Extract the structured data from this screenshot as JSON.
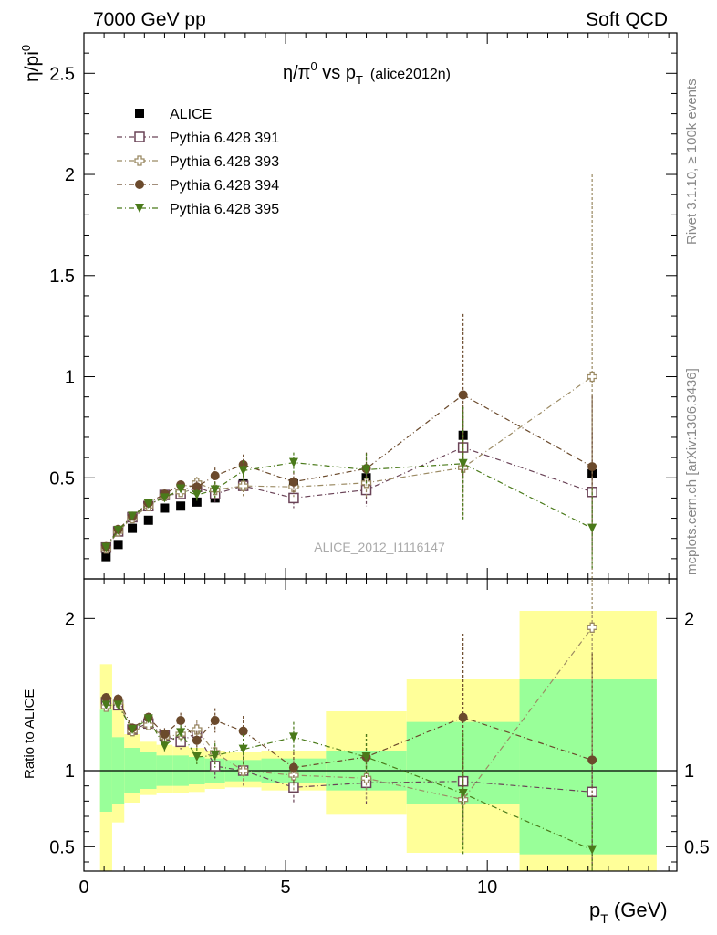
{
  "header": {
    "left_title": "7000 GeV pp",
    "right_title": "Soft QCD"
  },
  "side_labels": {
    "rivet": "Rivet 3.1.10, ≥ 100k events",
    "mcplots": "mcplots.cern.ch [arXiv:1306.3436]"
  },
  "chart_data": [
    {
      "type": "scatter",
      "panel": "main",
      "title_main": "η/π",
      "title_sup": "0",
      "title_vs": " vs p",
      "title_sub": "T",
      "title_tag": "(alice2012n)",
      "ylabel_main": "η/pi",
      "ylabel_sup": "0",
      "watermark": "ALICE_2012_I1116147",
      "ylim": [
        0,
        2.7
      ],
      "xlim": [
        0,
        14.7
      ],
      "x_ticks": [
        0,
        5,
        10
      ],
      "y_ticks": [
        0.5,
        1,
        1.5,
        2,
        2.5
      ],
      "y_tick_labels": [
        "0.5",
        "1",
        "1.5",
        "2",
        "2.5"
      ],
      "legend_position": "top-left",
      "series": [
        {
          "name": "ALICE",
          "color": "#000000",
          "marker": "square-filled",
          "line": false,
          "x": [
            0.55,
            0.85,
            1.2,
            1.6,
            2.0,
            2.4,
            2.8,
            3.25,
            3.95,
            5.2,
            7.0,
            9.4,
            12.6
          ],
          "y": [
            0.11,
            0.17,
            0.25,
            0.29,
            0.35,
            0.36,
            0.38,
            0.4,
            0.47,
            0.47,
            0.5,
            0.71,
            0.52
          ]
        },
        {
          "name": "Pythia 6.428 391",
          "color": "#6a4357",
          "marker": "square-open",
          "x": [
            0.55,
            0.85,
            1.2,
            1.6,
            2.0,
            2.4,
            2.8,
            3.25,
            3.95,
            5.2,
            7.0,
            9.4,
            12.6
          ],
          "y": [
            0.155,
            0.235,
            0.305,
            0.36,
            0.415,
            0.42,
            0.455,
            0.42,
            0.46,
            0.4,
            0.44,
            0.65,
            0.43
          ],
          "err": [
            0.01,
            0.01,
            0.01,
            0.015,
            0.02,
            0.02,
            0.03,
            0.04,
            0.05,
            0.05,
            0.08,
            0.2,
            0.3
          ]
        },
        {
          "name": "Pythia 6.428 393",
          "color": "#9b8a63",
          "marker": "cross-open",
          "x": [
            0.55,
            0.85,
            1.2,
            1.6,
            2.0,
            2.4,
            2.8,
            3.25,
            3.95,
            5.2,
            7.0,
            9.4,
            12.6
          ],
          "y": [
            0.15,
            0.235,
            0.3,
            0.36,
            0.41,
            0.43,
            0.475,
            0.44,
            0.46,
            0.455,
            0.475,
            0.55,
            1.0
          ],
          "err": [
            0.01,
            0.01,
            0.01,
            0.015,
            0.02,
            0.02,
            0.03,
            0.04,
            0.05,
            0.05,
            0.08,
            0.25,
            1.0
          ]
        },
        {
          "name": "Pythia 6.428 394",
          "color": "#6b4a2c",
          "marker": "circle-filled",
          "x": [
            0.55,
            0.85,
            1.2,
            1.6,
            2.0,
            2.4,
            2.8,
            3.25,
            3.95,
            5.2,
            7.0,
            9.4,
            12.6
          ],
          "y": [
            0.16,
            0.245,
            0.31,
            0.375,
            0.42,
            0.465,
            0.455,
            0.51,
            0.565,
            0.48,
            0.545,
            0.91,
            0.555
          ],
          "err": [
            0.01,
            0.01,
            0.01,
            0.015,
            0.02,
            0.02,
            0.03,
            0.04,
            0.05,
            0.05,
            0.08,
            0.4,
            0.35
          ]
        },
        {
          "name": "Pythia 6.428 395",
          "color": "#4a7a1a",
          "marker": "triangle-down-filled",
          "x": [
            0.55,
            0.85,
            1.2,
            1.6,
            2.0,
            2.4,
            2.8,
            3.25,
            3.95,
            5.2,
            7.0,
            9.4,
            12.6
          ],
          "y": [
            0.155,
            0.24,
            0.31,
            0.37,
            0.4,
            0.445,
            0.415,
            0.44,
            0.535,
            0.575,
            0.54,
            0.57,
            0.25
          ],
          "err": [
            0.01,
            0.01,
            0.01,
            0.015,
            0.02,
            0.02,
            0.03,
            0.04,
            0.05,
            0.05,
            0.08,
            0.28,
            0.2
          ]
        }
      ]
    },
    {
      "type": "scatter",
      "panel": "ratio",
      "ylabel": "Ratio to ALICE",
      "xlabel_main": "p",
      "xlabel_sub": "T",
      "xlabel_unit": " (GeV)",
      "ylim": [
        0.34,
        2.26
      ],
      "xlim": [
        0,
        14.7
      ],
      "x_ticks": [
        0,
        5,
        10
      ],
      "x_tick_labels": [
        "0",
        "5",
        "10"
      ],
      "y_ticks": [
        0.5,
        1,
        2
      ],
      "y_tick_labels": [
        "0.5",
        "1",
        "2"
      ],
      "reference_line": 1,
      "bands": [
        {
          "x0": 0.4,
          "x1": 0.7,
          "stat_lo": 0.73,
          "stat_hi": 1.4,
          "tot_lo": 0.0,
          "tot_hi": 1.7
        },
        {
          "x0": 0.7,
          "x1": 1.0,
          "stat_lo": 0.78,
          "stat_hi": 1.22,
          "tot_lo": 0.66,
          "tot_hi": 1.44
        },
        {
          "x0": 1.0,
          "x1": 1.4,
          "stat_lo": 0.85,
          "stat_hi": 1.15,
          "tot_lo": 0.79,
          "tot_hi": 1.24
        },
        {
          "x0": 1.4,
          "x1": 1.8,
          "stat_lo": 0.88,
          "stat_hi": 1.12,
          "tot_lo": 0.84,
          "tot_hi": 1.19
        },
        {
          "x0": 1.8,
          "x1": 2.2,
          "stat_lo": 0.9,
          "stat_hi": 1.1,
          "tot_lo": 0.85,
          "tot_hi": 1.17
        },
        {
          "x0": 2.2,
          "x1": 2.6,
          "stat_lo": 0.9,
          "stat_hi": 1.1,
          "tot_lo": 0.85,
          "tot_hi": 1.16
        },
        {
          "x0": 2.6,
          "x1": 3.0,
          "stat_lo": 0.91,
          "stat_hi": 1.09,
          "tot_lo": 0.86,
          "tot_hi": 1.15
        },
        {
          "x0": 3.0,
          "x1": 3.5,
          "stat_lo": 0.92,
          "stat_hi": 1.08,
          "tot_lo": 0.88,
          "tot_hi": 1.13
        },
        {
          "x0": 3.5,
          "x1": 4.4,
          "stat_lo": 0.93,
          "stat_hi": 1.07,
          "tot_lo": 0.89,
          "tot_hi": 1.12
        },
        {
          "x0": 4.4,
          "x1": 6.0,
          "stat_lo": 0.92,
          "stat_hi": 1.08,
          "tot_lo": 0.87,
          "tot_hi": 1.13
        },
        {
          "x0": 6.0,
          "x1": 8.0,
          "stat_lo": 0.87,
          "stat_hi": 1.13,
          "tot_lo": 0.71,
          "tot_hi": 1.39
        },
        {
          "x0": 8.0,
          "x1": 10.8,
          "stat_lo": 0.78,
          "stat_hi": 1.32,
          "tot_lo": 0.46,
          "tot_hi": 1.6
        },
        {
          "x0": 10.8,
          "x1": 14.2,
          "stat_lo": 0.45,
          "stat_hi": 1.6,
          "tot_lo": 0.0,
          "tot_hi": 2.05
        }
      ],
      "band_colors": {
        "stat": "#99ff99",
        "total": "#ffff99"
      },
      "series": [
        {
          "name": "Pythia 6.428 391",
          "color": "#6a4357",
          "marker": "square-open",
          "x": [
            0.55,
            0.85,
            1.2,
            1.6,
            2.0,
            2.4,
            2.8,
            3.25,
            3.95,
            5.2,
            7.0,
            9.4,
            12.6
          ],
          "y": [
            1.45,
            1.43,
            1.27,
            1.31,
            1.23,
            1.19,
            1.25,
            1.03,
            1.0,
            0.89,
            0.92,
            0.93,
            0.86
          ],
          "err": [
            0.03,
            0.03,
            0.03,
            0.03,
            0.04,
            0.05,
            0.06,
            0.08,
            0.1,
            0.1,
            0.15,
            0.25,
            0.5
          ]
        },
        {
          "name": "Pythia 6.428 393",
          "color": "#9b8a63",
          "marker": "cross-open",
          "x": [
            0.55,
            0.85,
            1.2,
            1.6,
            2.0,
            2.4,
            2.8,
            3.25,
            3.95,
            5.2,
            7.0,
            9.4,
            12.6
          ],
          "y": [
            1.42,
            1.45,
            1.26,
            1.3,
            1.22,
            1.24,
            1.27,
            1.12,
            1.0,
            0.97,
            0.95,
            0.81,
            1.94
          ],
          "err": [
            0.03,
            0.03,
            0.03,
            0.03,
            0.04,
            0.05,
            0.06,
            0.08,
            0.1,
            0.1,
            0.15,
            0.3,
            0.9
          ]
        },
        {
          "name": "Pythia 6.428 394",
          "color": "#6b4a2c",
          "marker": "circle-filled",
          "x": [
            0.55,
            0.85,
            1.2,
            1.6,
            2.0,
            2.4,
            2.8,
            3.25,
            3.95,
            5.2,
            7.0,
            9.4,
            12.6
          ],
          "y": [
            1.48,
            1.47,
            1.28,
            1.35,
            1.24,
            1.33,
            1.2,
            1.33,
            1.26,
            1.02,
            1.09,
            1.35,
            1.07
          ],
          "err": [
            0.03,
            0.03,
            0.03,
            0.03,
            0.04,
            0.05,
            0.06,
            0.08,
            0.1,
            0.1,
            0.15,
            0.55,
            0.7
          ]
        },
        {
          "name": "Pythia 6.428 395",
          "color": "#4a7a1a",
          "marker": "triangle-down-filled",
          "x": [
            0.55,
            0.85,
            1.2,
            1.6,
            2.0,
            2.4,
            2.8,
            3.25,
            3.95,
            5.2,
            7.0,
            9.4,
            12.6
          ],
          "y": [
            1.43,
            1.43,
            1.27,
            1.34,
            1.16,
            1.25,
            1.09,
            1.1,
            1.14,
            1.22,
            1.09,
            0.85,
            0.48
          ],
          "err": [
            0.03,
            0.03,
            0.03,
            0.03,
            0.04,
            0.05,
            0.06,
            0.08,
            0.1,
            0.1,
            0.15,
            0.4,
            0.3
          ]
        }
      ]
    }
  ]
}
